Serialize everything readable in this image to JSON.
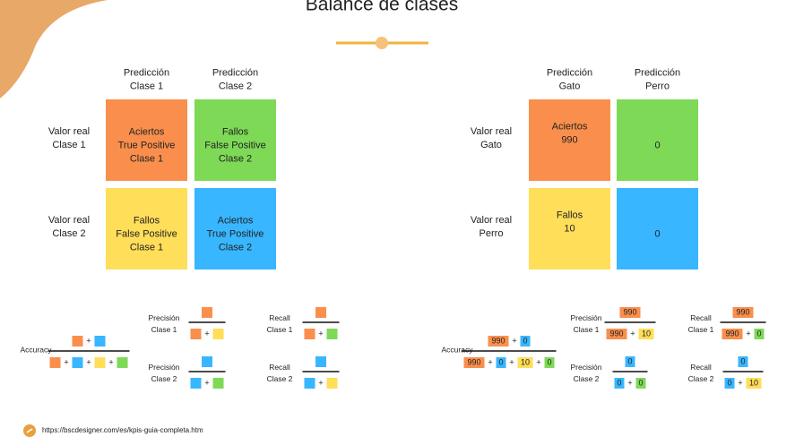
{
  "title": "Balance de clases",
  "matrices": [
    {
      "col_headers": [
        [
          "Predicción",
          "Clase 1"
        ],
        [
          "Predicción",
          "Clase 2"
        ]
      ],
      "row_headers": [
        [
          "Valor real",
          "Clase 1"
        ],
        [
          "Valor real",
          "Clase 2"
        ]
      ],
      "cells": [
        [
          {
            "lines": [
              "Aciertos",
              "True Positive",
              "Clase 1"
            ],
            "color": "#fa8f4d"
          },
          {
            "lines": [
              "Fallos",
              "False Positive",
              "Clase 2"
            ],
            "color": "#7ed957"
          }
        ],
        [
          {
            "lines": [
              "Fallos",
              "False Positive",
              "Clase 1"
            ],
            "color": "#ffde59"
          },
          {
            "lines": [
              "Aciertos",
              "True Positive",
              "Clase 2"
            ],
            "color": "#38b6ff"
          }
        ]
      ]
    },
    {
      "col_headers": [
        [
          "Predicción",
          "Gato"
        ],
        [
          "Predicción",
          "Perro"
        ]
      ],
      "row_headers": [
        [
          "Valor real",
          "Gato"
        ],
        [
          "Valor real",
          "Perro"
        ]
      ],
      "cells": [
        [
          {
            "lines": [
              "Aciertos",
              "990"
            ],
            "color": "#fa8f4d"
          },
          {
            "lines": [
              "0"
            ],
            "color": "#7ed957"
          }
        ],
        [
          {
            "lines": [
              "Fallos",
              "10"
            ],
            "color": "#ffde59"
          },
          {
            "lines": [
              "0"
            ],
            "color": "#38b6ff"
          }
        ]
      ]
    }
  ],
  "formulas": [
    {
      "label": [
        "Accuracy"
      ],
      "numerator": [
        {
          "color": "#fa8f4d"
        },
        "+",
        {
          "color": "#38b6ff"
        }
      ],
      "denominator": [
        {
          "color": "#fa8f4d"
        },
        "+",
        {
          "color": "#38b6ff"
        },
        "+",
        {
          "color": "#ffde59"
        },
        "+",
        {
          "color": "#7ed957"
        }
      ]
    },
    {
      "label": [
        "Precisión",
        "Clase 1"
      ],
      "numerator": [
        {
          "color": "#fa8f4d"
        }
      ],
      "denominator": [
        {
          "color": "#fa8f4d"
        },
        "+",
        {
          "color": "#ffde59"
        }
      ]
    },
    {
      "label": [
        "Recall",
        "Clase 1"
      ],
      "numerator": [
        {
          "color": "#fa8f4d"
        }
      ],
      "denominator": [
        {
          "color": "#fa8f4d"
        },
        "+",
        {
          "color": "#7ed957"
        }
      ]
    },
    {
      "label": [
        "Precisión",
        "Clase 2"
      ],
      "numerator": [
        {
          "color": "#38b6ff"
        }
      ],
      "denominator": [
        {
          "color": "#38b6ff"
        },
        "+",
        {
          "color": "#7ed957"
        }
      ]
    },
    {
      "label": [
        "Recall",
        "Clase 2"
      ],
      "numerator": [
        {
          "color": "#38b6ff"
        }
      ],
      "denominator": [
        {
          "color": "#38b6ff"
        },
        "+",
        {
          "color": "#ffde59"
        }
      ]
    },
    {
      "label": [
        "Accuracy"
      ],
      "numerator": [
        {
          "text": "990",
          "color": "#fa8f4d"
        },
        "+",
        {
          "text": "0",
          "color": "#38b6ff"
        }
      ],
      "denominator": [
        {
          "text": "990",
          "color": "#fa8f4d"
        },
        "+",
        {
          "text": "0",
          "color": "#38b6ff"
        },
        "+",
        {
          "text": "10",
          "color": "#ffde59"
        },
        "+",
        {
          "text": "0",
          "color": "#7ed957"
        }
      ]
    },
    {
      "label": [
        "Precisión",
        "Clase 1"
      ],
      "numerator": [
        {
          "text": "990",
          "color": "#fa8f4d"
        }
      ],
      "denominator": [
        {
          "text": "990",
          "color": "#fa8f4d"
        },
        "+",
        {
          "text": "10",
          "color": "#ffde59"
        }
      ]
    },
    {
      "label": [
        "Recall",
        "Clase 1"
      ],
      "numerator": [
        {
          "text": "990",
          "color": "#fa8f4d"
        }
      ],
      "denominator": [
        {
          "text": "990",
          "color": "#fa8f4d"
        },
        "+",
        {
          "text": "0",
          "color": "#7ed957"
        }
      ]
    },
    {
      "label": [
        "Precisión",
        "Clase 2"
      ],
      "numerator": [
        {
          "text": "0",
          "color": "#38b6ff"
        }
      ],
      "denominator": [
        {
          "text": "0",
          "color": "#38b6ff"
        },
        "+",
        {
          "text": "0",
          "color": "#7ed957"
        }
      ]
    },
    {
      "label": [
        "Recall",
        "Clase 2"
      ],
      "numerator": [
        {
          "text": "0",
          "color": "#38b6ff"
        }
      ],
      "denominator": [
        {
          "text": "0",
          "color": "#38b6ff"
        },
        "+",
        {
          "text": "10",
          "color": "#ffde59"
        }
      ]
    }
  ],
  "footer": {
    "url": "https://bscdesigner.com/es/kpis-guia-completa.htm"
  }
}
